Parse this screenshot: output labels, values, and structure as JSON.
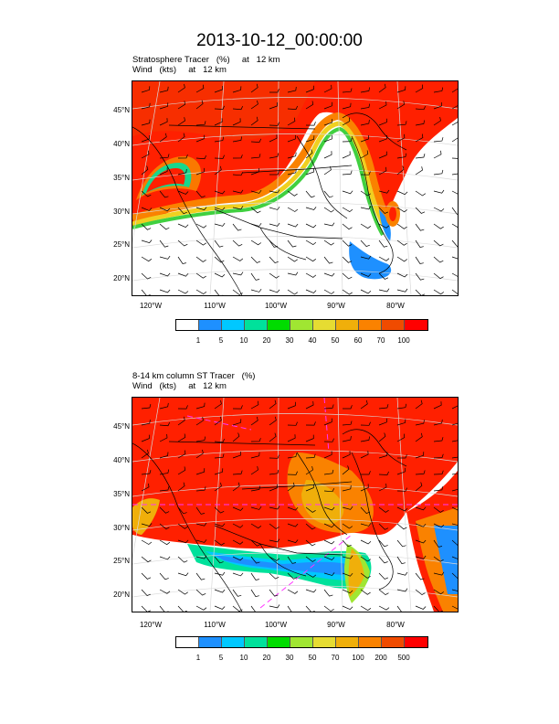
{
  "title": "2013-10-12_00:00:00",
  "panel1": {
    "subtitle_line1": "Stratosphere Tracer   (%)     at   12 km",
    "subtitle_line2": "Wind   (kts)     at   12 km",
    "colorbar_labels": [
      "1",
      "5",
      "10",
      "20",
      "30",
      "40",
      "50",
      "60",
      "70",
      "100"
    ]
  },
  "panel2": {
    "subtitle_line1": "8-14 km column ST Tracer   (%)",
    "subtitle_line2": "Wind   (kts)     at   12 km",
    "colorbar_labels": [
      "1",
      "5",
      "10",
      "20",
      "30",
      "50",
      "70",
      "100",
      "200",
      "500"
    ]
  },
  "lat_labels": [
    "45°N",
    "40°N",
    "35°N",
    "30°N",
    "25°N",
    "20°N"
  ],
  "lon_labels": [
    "120°W",
    "110°W",
    "100°W",
    "90°W",
    "80°W"
  ],
  "colors": [
    "#ffffff",
    "#1e90ff",
    "#00c8ff",
    "#00e19b",
    "#00dc00",
    "#a0e632",
    "#e6dc32",
    "#f0af0a",
    "#fa8200",
    "#f04b00",
    "#ff0000"
  ]
}
